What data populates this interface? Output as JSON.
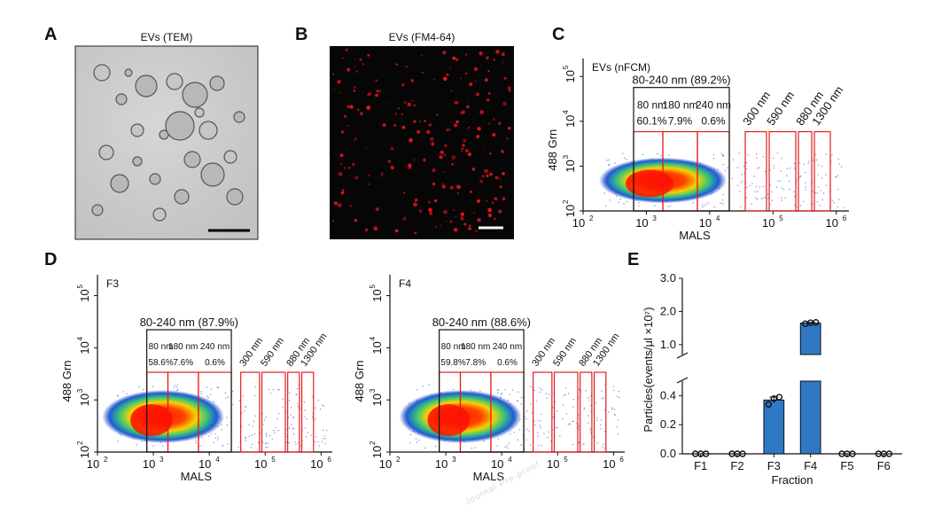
{
  "panels": {
    "A": {
      "letter": "A",
      "title": "EVs (TEM)"
    },
    "B": {
      "letter": "B",
      "title": "EVs (FM4-64)"
    },
    "C": {
      "letter": "C",
      "title": "EVs (nFCM)",
      "gate_summary": "80-240 nm (89.2%)",
      "gates": [
        {
          "size": "80 nm",
          "pct": "60.1%"
        },
        {
          "size": "180 nm",
          "pct": "7.9%"
        },
        {
          "size": "240 nm",
          "pct": "0.6%"
        }
      ],
      "extra_gates": [
        "300 nm",
        "590 nm",
        "880 nm",
        "1300 nm"
      ]
    },
    "D": {
      "letter": "D",
      "F3": {
        "title": "F3",
        "gate_summary": "80-240 nm (87.9%)",
        "gates": [
          {
            "size": "80 nm",
            "pct": "58.6%"
          },
          {
            "size": "180 nm",
            "pct": "7.6%"
          },
          {
            "size": "240 nm",
            "pct": "0.6%"
          }
        ],
        "extra_gates": [
          "300 nm",
          "590 nm",
          "880 nm",
          "1300 nm"
        ]
      },
      "F4": {
        "title": "F4",
        "gate_summary": "80-240 nm (88.6%)",
        "gates": [
          {
            "size": "80 nm",
            "pct": "59.8%"
          },
          {
            "size": "180 nm",
            "pct": "7.8%"
          },
          {
            "size": "240 nm",
            "pct": "0.6%"
          }
        ],
        "extra_gates": [
          "300 nm",
          "590 nm",
          "880 nm",
          "1300 nm"
        ]
      }
    },
    "E": {
      "letter": "E"
    }
  },
  "axes": {
    "ylabel": "488 Grn",
    "xlabel": "MALS",
    "xticks": [
      "10",
      "10",
      "10",
      "10",
      "10"
    ],
    "xtick_exp": [
      "2",
      "3",
      "4",
      "5",
      "6"
    ],
    "yticks": [
      "10",
      "10",
      "10",
      "10"
    ],
    "ytick_exp": [
      "2",
      "3",
      "4",
      "5"
    ]
  },
  "chart_data": {
    "type": "bar",
    "title": "",
    "xlabel": "Fraction",
    "ylabel": "Particles(events/μl ×10⁷)",
    "categories": [
      "F1",
      "F2",
      "F3",
      "F4",
      "F5",
      "F6"
    ],
    "values": [
      0.0,
      0.0,
      0.37,
      1.65,
      0.0,
      0.0
    ],
    "errors": [
      0.0,
      0.0,
      0.02,
      0.02,
      0.0,
      0.0
    ],
    "points": [
      [
        0,
        0,
        0
      ],
      [
        0,
        0,
        0
      ],
      [
        0.34,
        0.38,
        0.39
      ],
      [
        1.63,
        1.66,
        1.67
      ],
      [
        0,
        0,
        0
      ],
      [
        0,
        0,
        0
      ]
    ],
    "yticks_lower": [
      "0.0",
      "0.2",
      "0.4"
    ],
    "yticks_upper": [
      "1.0",
      "2.0",
      "3.0"
    ],
    "ylim_lower": [
      0,
      0.5
    ],
    "ylim_upper": [
      0.7,
      3.0
    ],
    "bar_color": "#2f78c4"
  },
  "watermark": "Journal Pre-proof"
}
